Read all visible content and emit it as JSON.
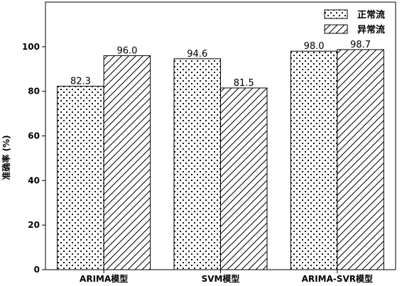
{
  "chart_data": {
    "type": "bar",
    "title": "",
    "xlabel": "",
    "ylabel": "准确率 (%)",
    "categories": [
      "ARIMA模型",
      "SVM模型",
      "ARIMA-SVR模型"
    ],
    "series": [
      {
        "name": "正常流",
        "values": [
          82.3,
          94.6,
          98.0
        ],
        "labels": [
          "82.3",
          "94.6",
          "98.0"
        ],
        "pattern": "dots"
      },
      {
        "name": "异常流",
        "values": [
          96.0,
          81.5,
          98.7
        ],
        "labels": [
          "96.0",
          "81.5",
          "98.7"
        ],
        "pattern": "hatch"
      }
    ],
    "ylim": [
      0,
      120
    ],
    "yticks": [
      0,
      20,
      40,
      60,
      80,
      100
    ],
    "ytick_labels": [
      "0",
      "20",
      "40",
      "60",
      "80",
      "100"
    ],
    "grid": false,
    "legend_position": "top-right",
    "colors": {
      "bar_fill": "#ffffff",
      "stroke": "#000000"
    }
  }
}
